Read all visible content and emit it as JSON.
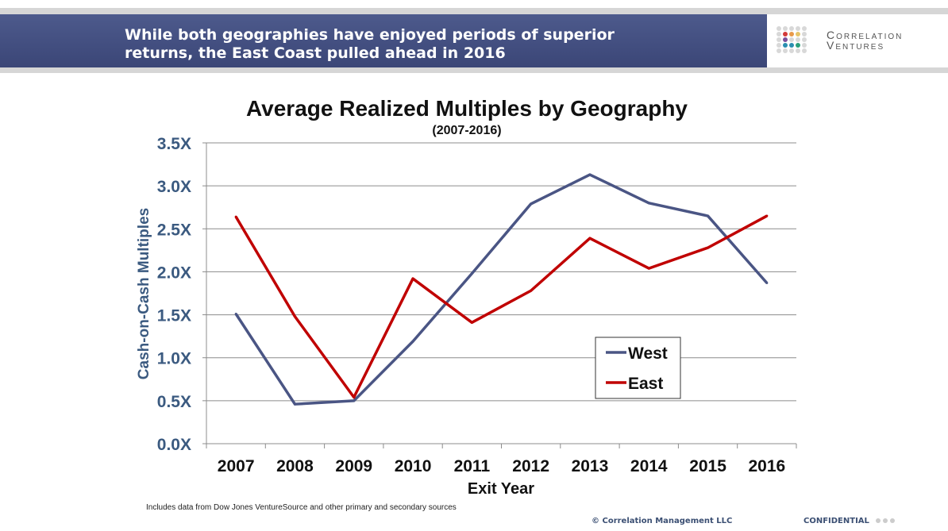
{
  "header": {
    "headline": "While both geographies have enjoyed periods of superior returns, the East Coast pulled ahead in 2016"
  },
  "logo": {
    "line1": "Correlation",
    "line2": "Ventures",
    "dot_colors": [
      "#d33a3a",
      "#e89a4a",
      "#e5c46a",
      "#7a4f9c",
      "#2a8fb0",
      "#2aa07a",
      "#3aa55a"
    ]
  },
  "chart_data": {
    "type": "line",
    "title": "Average Realized Multiples by Geography",
    "subtitle": "(2007-2016)",
    "xlabel": "Exit Year",
    "ylabel": "Cash-on-Cash Multiples",
    "categories": [
      "2007",
      "2008",
      "2009",
      "2010",
      "2011",
      "2012",
      "2013",
      "2014",
      "2015",
      "2016"
    ],
    "ylim": [
      0,
      3.5
    ],
    "yticks": [
      "0.0X",
      "0.5X",
      "1.0X",
      "1.5X",
      "2.0X",
      "2.5X",
      "3.0X",
      "3.5X"
    ],
    "grid": true,
    "legend": "lower-right",
    "series": [
      {
        "name": "West",
        "color": "#4a5584",
        "values": [
          1.51,
          0.46,
          0.5,
          1.19,
          1.98,
          2.79,
          3.13,
          2.8,
          2.65,
          1.87
        ]
      },
      {
        "name": "East",
        "color": "#c00000",
        "values": [
          2.64,
          1.48,
          0.54,
          1.92,
          1.41,
          1.78,
          2.39,
          2.04,
          2.28,
          2.65
        ]
      }
    ]
  },
  "footer": {
    "note": "Includes data from Dow Jones VentureSource and other primary and secondary sources",
    "copyright": "© Correlation Management LLC",
    "confidential": "CONFIDENTIAL"
  }
}
